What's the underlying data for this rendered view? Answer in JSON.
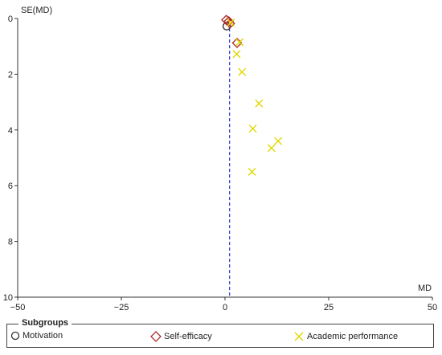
{
  "chart_data": {
    "type": "scatter",
    "title": "",
    "xlabel": "MD",
    "ylabel": "SE(MD)",
    "xlim": [
      -50,
      50
    ],
    "ylim": [
      0,
      10
    ],
    "y_inverted": true,
    "x_ticks": [
      -50,
      -25,
      0,
      25,
      50
    ],
    "y_ticks": [
      0,
      2,
      4,
      6,
      8,
      10
    ],
    "reference_line": {
      "x": 1.1,
      "style": "dashed",
      "color": "#2233cc"
    },
    "series": [
      {
        "name": "Motivation",
        "marker": "circle",
        "color": "#333333",
        "points": [
          {
            "x": 0.4,
            "y": 0.28
          }
        ]
      },
      {
        "name": "Self-efficacy",
        "marker": "diamond",
        "color": "#b03030",
        "points": [
          {
            "x": 0.3,
            "y": 0.05
          },
          {
            "x": 0.9,
            "y": 0.1
          },
          {
            "x": 1.2,
            "y": 0.18
          },
          {
            "x": 2.9,
            "y": 0.88
          }
        ]
      },
      {
        "name": "Academic performance",
        "marker": "x",
        "color": "#e0d800",
        "points": [
          {
            "x": 1.4,
            "y": 0.15
          },
          {
            "x": 3.5,
            "y": 0.85
          },
          {
            "x": 2.8,
            "y": 1.28
          },
          {
            "x": 4.1,
            "y": 1.92
          },
          {
            "x": 8.2,
            "y": 3.05
          },
          {
            "x": 6.7,
            "y": 3.95
          },
          {
            "x": 12.8,
            "y": 4.4
          },
          {
            "x": 11.2,
            "y": 4.65
          },
          {
            "x": 6.5,
            "y": 5.5
          }
        ]
      }
    ]
  },
  "legend": {
    "title": "Subgroups",
    "items": [
      {
        "label": "Motivation",
        "marker": "circle",
        "color": "#333333"
      },
      {
        "label": "Self-efficacy",
        "marker": "diamond",
        "color": "#b03030"
      },
      {
        "label": "Academic performance",
        "marker": "x",
        "color": "#e0d800"
      }
    ]
  }
}
